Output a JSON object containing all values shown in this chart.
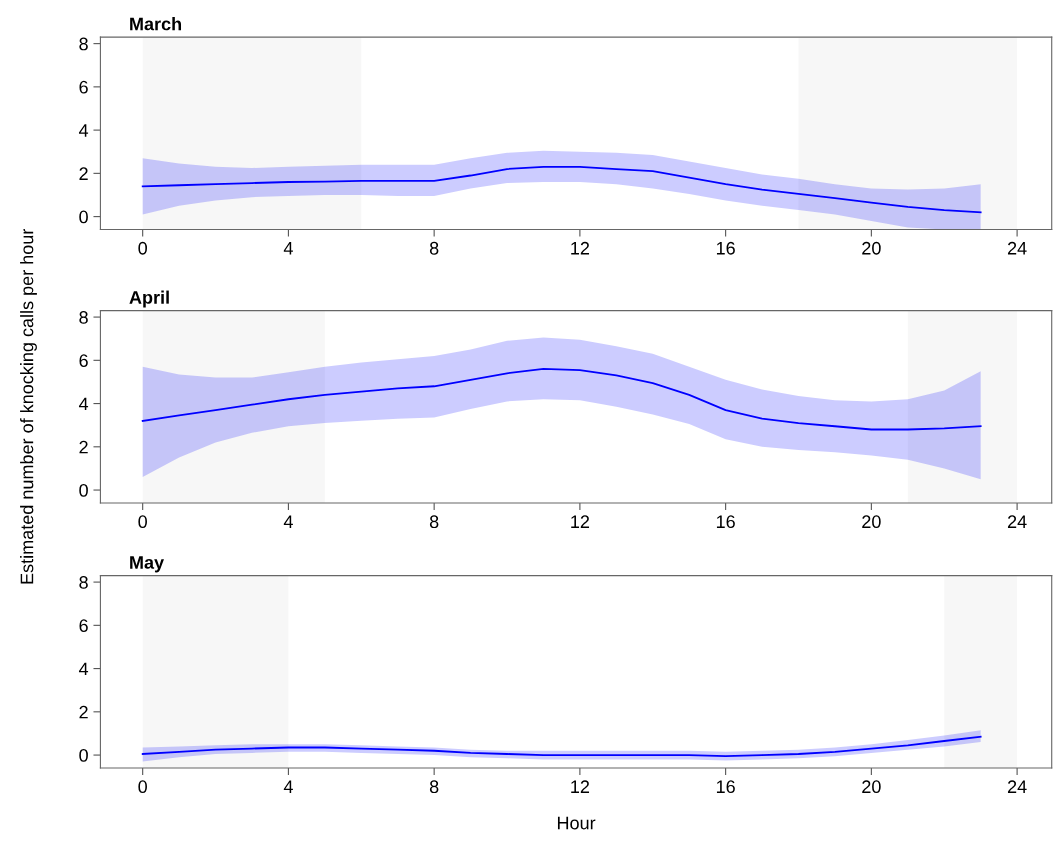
{
  "chart_data": [
    {
      "type": "line",
      "title": "March",
      "x": [
        0,
        1,
        2,
        3,
        4,
        5,
        6,
        7,
        8,
        9,
        10,
        11,
        12,
        13,
        14,
        15,
        16,
        17,
        18,
        19,
        20,
        21,
        22,
        23
      ],
      "xlim": [
        -1.16,
        24.95
      ],
      "xticks": [
        0,
        4,
        8,
        12,
        16,
        20,
        24
      ],
      "ylim": [
        -0.6,
        8.3
      ],
      "yticks": [
        0,
        2,
        4,
        6,
        8
      ],
      "series": [
        {
          "color": "#0000ff",
          "values": [
            1.4,
            1.45,
            1.5,
            1.55,
            1.6,
            1.62,
            1.65,
            1.65,
            1.65,
            1.9,
            2.2,
            2.3,
            2.3,
            2.2,
            2.1,
            1.8,
            1.5,
            1.25,
            1.05,
            0.85,
            0.65,
            0.45,
            0.3,
            0.2
          ],
          "lower": [
            0.1,
            0.5,
            0.75,
            0.9,
            0.95,
            1.0,
            1.0,
            0.95,
            0.95,
            1.3,
            1.55,
            1.6,
            1.6,
            1.5,
            1.3,
            1.05,
            0.75,
            0.5,
            0.3,
            0.1,
            -0.2,
            -0.5,
            -0.6,
            -0.6
          ],
          "upper": [
            2.7,
            2.45,
            2.3,
            2.25,
            2.3,
            2.35,
            2.4,
            2.4,
            2.4,
            2.7,
            2.95,
            3.05,
            3.0,
            2.95,
            2.85,
            2.55,
            2.25,
            1.95,
            1.75,
            1.5,
            1.3,
            1.25,
            1.3,
            1.5
          ]
        }
      ],
      "bands": [
        {
          "axis": "x",
          "from": 0,
          "to": 6,
          "color": "#f7f7f7"
        },
        {
          "axis": "x",
          "from": 18,
          "to": 24,
          "color": "#f7f7f7"
        }
      ]
    },
    {
      "type": "line",
      "title": "April",
      "ylabel": "Estimated number of knocking calls per hour",
      "x": [
        0,
        1,
        2,
        3,
        4,
        5,
        6,
        7,
        8,
        9,
        10,
        11,
        12,
        13,
        14,
        15,
        16,
        17,
        18,
        19,
        20,
        21,
        22,
        23
      ],
      "xlim": [
        -1.16,
        24.95
      ],
      "xticks": [
        0,
        4,
        8,
        12,
        16,
        20,
        24
      ],
      "ylim": [
        -0.6,
        8.3
      ],
      "yticks": [
        0,
        2,
        4,
        6,
        8
      ],
      "series": [
        {
          "color": "#0000ff",
          "values": [
            3.2,
            3.45,
            3.7,
            3.95,
            4.2,
            4.4,
            4.55,
            4.7,
            4.8,
            5.1,
            5.4,
            5.6,
            5.55,
            5.3,
            4.95,
            4.4,
            3.7,
            3.3,
            3.1,
            2.95,
            2.8,
            2.8,
            2.85,
            2.95
          ],
          "lower": [
            0.6,
            1.5,
            2.2,
            2.65,
            2.95,
            3.1,
            3.2,
            3.3,
            3.35,
            3.75,
            4.1,
            4.2,
            4.15,
            3.85,
            3.5,
            3.05,
            2.35,
            2.0,
            1.85,
            1.75,
            1.6,
            1.4,
            1.0,
            0.5
          ],
          "upper": [
            5.7,
            5.35,
            5.2,
            5.2,
            5.45,
            5.7,
            5.9,
            6.05,
            6.2,
            6.5,
            6.9,
            7.05,
            6.95,
            6.65,
            6.3,
            5.7,
            5.1,
            4.65,
            4.35,
            4.15,
            4.1,
            4.2,
            4.6,
            5.5
          ]
        }
      ],
      "bands": [
        {
          "axis": "x",
          "from": 0,
          "to": 5,
          "color": "#f7f7f7"
        },
        {
          "axis": "x",
          "from": 21,
          "to": 24,
          "color": "#f7f7f7"
        }
      ]
    },
    {
      "type": "line",
      "title": "May",
      "xlabel": "Hour",
      "x": [
        0,
        1,
        2,
        3,
        4,
        5,
        6,
        7,
        8,
        9,
        10,
        11,
        12,
        13,
        14,
        15,
        16,
        17,
        18,
        19,
        20,
        21,
        22,
        23
      ],
      "xlim": [
        -1.16,
        24.95
      ],
      "xticks": [
        0,
        4,
        8,
        12,
        16,
        20,
        24
      ],
      "ylim": [
        -0.6,
        8.3
      ],
      "yticks": [
        0,
        2,
        4,
        6,
        8
      ],
      "series": [
        {
          "color": "#0000ff",
          "values": [
            0.05,
            0.15,
            0.25,
            0.3,
            0.35,
            0.35,
            0.3,
            0.25,
            0.2,
            0.1,
            0.05,
            0.0,
            0.0,
            0.0,
            0.0,
            0.0,
            -0.05,
            0.0,
            0.05,
            0.15,
            0.3,
            0.45,
            0.65,
            0.85
          ],
          "lower": [
            -0.3,
            -0.1,
            0.05,
            0.1,
            0.15,
            0.15,
            0.1,
            0.05,
            0.0,
            -0.1,
            -0.15,
            -0.2,
            -0.2,
            -0.2,
            -0.2,
            -0.2,
            -0.25,
            -0.2,
            -0.15,
            -0.05,
            0.1,
            0.25,
            0.4,
            0.6
          ],
          "upper": [
            0.35,
            0.4,
            0.45,
            0.5,
            0.5,
            0.5,
            0.45,
            0.4,
            0.35,
            0.25,
            0.2,
            0.2,
            0.2,
            0.2,
            0.2,
            0.2,
            0.15,
            0.2,
            0.25,
            0.35,
            0.5,
            0.7,
            0.9,
            1.15
          ]
        }
      ],
      "bands": [
        {
          "axis": "x",
          "from": 0,
          "to": 4,
          "color": "#f7f7f7"
        },
        {
          "axis": "x",
          "from": 22,
          "to": 24,
          "color": "#f7f7f7"
        }
      ]
    }
  ]
}
